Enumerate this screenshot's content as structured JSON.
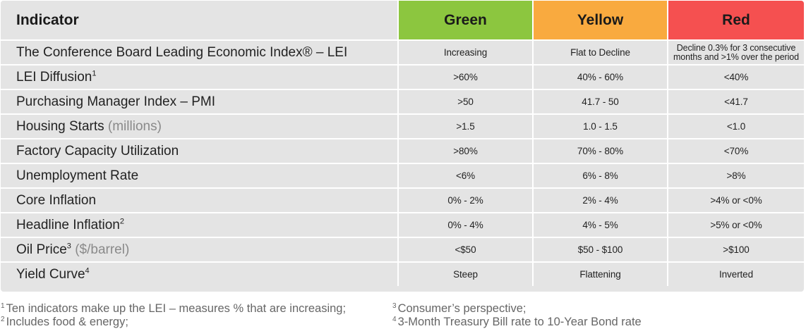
{
  "table": {
    "headers": {
      "indicator": "Indicator",
      "green": "Green",
      "yellow": "Yellow",
      "red": "Red"
    },
    "colors": {
      "green": "#8cc63f",
      "yellow": "#f9aa3f",
      "red": "#f55050",
      "row_bg": "#e4e4e4"
    },
    "rows": [
      {
        "name": "The Conference Board Leading Economic Index® – LEI",
        "unit": "",
        "sup": "",
        "green": "Increasing",
        "yellow": "Flat to Decline",
        "red": "Decline 0.3% for 3 consecutive months and >1% over the period"
      },
      {
        "name": "LEI Diffusion",
        "unit": "",
        "sup": "1",
        "green": ">60%",
        "yellow": "40% - 60%",
        "red": "<40%"
      },
      {
        "name": "Purchasing Manager Index – PMI",
        "unit": "",
        "sup": "",
        "green": ">50",
        "yellow": "41.7 - 50",
        "red": "<41.7"
      },
      {
        "name": "Housing Starts",
        "unit": "(millions)",
        "sup": "",
        "green": ">1.5",
        "yellow": "1.0 - 1.5",
        "red": "<1.0"
      },
      {
        "name": "Factory Capacity Utilization",
        "unit": "",
        "sup": "",
        "green": ">80%",
        "yellow": "70% - 80%",
        "red": "<70%"
      },
      {
        "name": "Unemployment Rate",
        "unit": "",
        "sup": "",
        "green": "<6%",
        "yellow": "6% - 8%",
        "red": ">8%"
      },
      {
        "name": "Core Inflation",
        "unit": "",
        "sup": "",
        "green": "0% - 2%",
        "yellow": "2% - 4%",
        "red": ">4% or <0%"
      },
      {
        "name": "Headline Inflation",
        "unit": "",
        "sup": "2",
        "green": "0% - 4%",
        "yellow": "4% - 5%",
        "red": ">5% or <0%"
      },
      {
        "name": "Oil Price",
        "unit": "($/barrel)",
        "sup": "3",
        "green": "<$50",
        "yellow": "$50 - $100",
        "red": ">$100"
      },
      {
        "name": "Yield Curve",
        "unit": "",
        "sup": "4",
        "green": "Steep",
        "yellow": "Flattening",
        "red": "Inverted"
      }
    ]
  },
  "footnotes": [
    {
      "mark": "1",
      "text": "Ten indicators make up the LEI – measures % that are increasing;"
    },
    {
      "mark": "2",
      "text": "Includes food & energy;"
    },
    {
      "mark": "3",
      "text": "Consumer’s perspective;"
    },
    {
      "mark": "4",
      "text": "3-Month Treasury Bill rate to 10-Year Bond rate"
    }
  ]
}
